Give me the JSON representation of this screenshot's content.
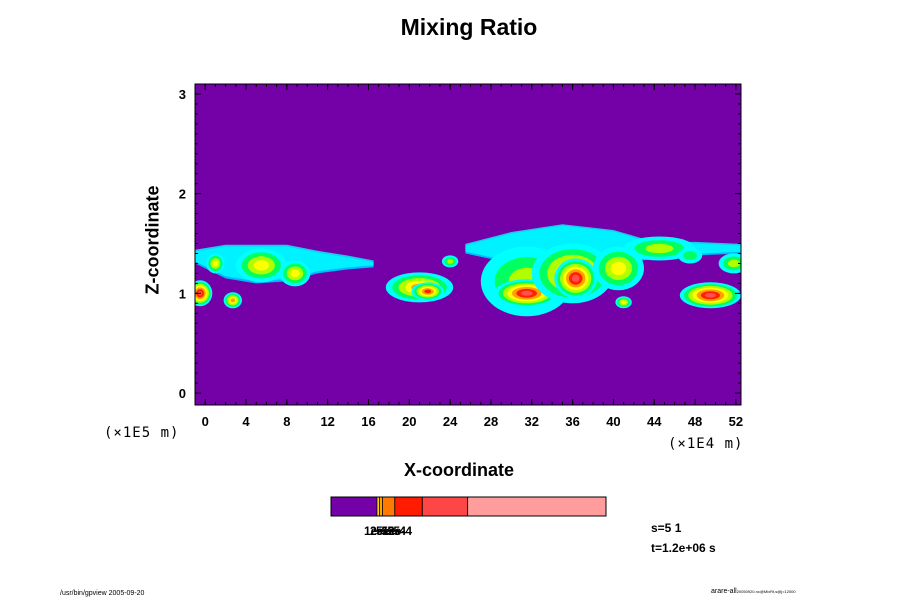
{
  "chart_data": {
    "type": "heatmap",
    "title": "Mixing Ratio",
    "xlabel": "X-coordinate",
    "ylabel": "Z-coordinate",
    "x_scale_note": "(×1E4 m)",
    "y_scale_note": "(×1E5 m)",
    "x_ticks": [
      "0",
      "4",
      "8",
      "12",
      "16",
      "20",
      "24",
      "28",
      "32",
      "36",
      "40",
      "44",
      "48",
      "52"
    ],
    "y_ticks": [
      "0",
      "1",
      "2",
      "3"
    ],
    "xlim": [
      -1,
      52.5
    ],
    "ylim": [
      -0.12,
      3.1
    ],
    "background_color": "#7400a8",
    "cloud_bands": [
      {
        "x": [
          -1,
          2,
          5,
          8,
          11,
          14,
          16.5
        ],
        "top": [
          1.42,
          1.47,
          1.47,
          1.47,
          1.41,
          1.36,
          1.31
        ],
        "bottom": [
          1.3,
          1.15,
          1.1,
          1.12,
          1.2,
          1.24,
          1.26
        ],
        "level": 1
      },
      {
        "x": [
          25.5,
          30,
          35,
          40,
          44,
          48,
          52.5
        ],
        "top": [
          1.48,
          1.6,
          1.68,
          1.62,
          1.5,
          1.5,
          1.48
        ],
        "bottom": [
          1.4,
          1.3,
          1.22,
          1.28,
          1.35,
          1.38,
          1.4
        ],
        "level": 1
      }
    ],
    "cells": [
      {
        "x": -0.5,
        "z": 1.0,
        "rx": 1.2,
        "rz": 0.13,
        "peak": 6
      },
      {
        "x": 1.0,
        "z": 1.3,
        "rx": 0.9,
        "rz": 0.1,
        "peak": 3
      },
      {
        "x": 5.5,
        "z": 1.28,
        "rx": 2.5,
        "rz": 0.17,
        "peak": 3
      },
      {
        "x": 8.8,
        "z": 1.2,
        "rx": 1.5,
        "rz": 0.13,
        "peak": 3
      },
      {
        "x": 2.7,
        "z": 0.93,
        "rx": 0.9,
        "rz": 0.08,
        "peak": 4
      },
      {
        "x": 24.0,
        "z": 1.32,
        "rx": 0.8,
        "rz": 0.06,
        "peak": 2
      },
      {
        "x": 21.0,
        "z": 1.06,
        "rx": 3.3,
        "rz": 0.15,
        "peak": 4
      },
      {
        "x": 21.8,
        "z": 1.02,
        "rx": 1.6,
        "rz": 0.09,
        "peak": 5
      },
      {
        "x": 31.5,
        "z": 1.12,
        "rx": 4.5,
        "rz": 0.35,
        "peak": 2
      },
      {
        "x": 31.5,
        "z": 1.0,
        "rx": 3.2,
        "rz": 0.14,
        "peak": 6
      },
      {
        "x": 36.0,
        "z": 1.2,
        "rx": 4.0,
        "rz": 0.3,
        "peak": 4
      },
      {
        "x": 36.3,
        "z": 1.15,
        "rx": 2.1,
        "rz": 0.2,
        "peak": 6
      },
      {
        "x": 40.5,
        "z": 1.25,
        "rx": 2.5,
        "rz": 0.22,
        "peak": 3
      },
      {
        "x": 44.5,
        "z": 1.45,
        "rx": 3.5,
        "rz": 0.12,
        "peak": 2
      },
      {
        "x": 41.0,
        "z": 0.91,
        "rx": 0.8,
        "rz": 0.06,
        "peak": 3
      },
      {
        "x": 49.5,
        "z": 0.98,
        "rx": 3.0,
        "rz": 0.13,
        "peak": 6
      },
      {
        "x": 51.8,
        "z": 1.3,
        "rx": 1.5,
        "rz": 0.1,
        "peak": 2
      },
      {
        "x": 47.5,
        "z": 1.38,
        "rx": 1.2,
        "rz": 0.08,
        "peak": 1
      }
    ],
    "contour_colors": [
      "#00b8ff",
      "#00ffff",
      "#00ff60",
      "#b0ff00",
      "#ffff00",
      "#ffa000",
      "#ff2000",
      "#ff5050",
      "#ffa0a0",
      "#ffffff"
    ],
    "colorbar": {
      "colors": [
        "#7400a8",
        "#ffd000",
        "#ff9f00",
        "#ff7a00",
        "#ff1c00",
        "#ff4646",
        "#ff9c9c"
      ],
      "fractions": [
        0,
        0.167,
        0.176,
        0.187,
        0.232,
        0.332,
        0.497,
        1.0
      ],
      "labels_overlapping": [
        "1e-5",
        "2e-5",
        "5e-5",
        "1e-4",
        "2e-4"
      ]
    }
  },
  "info": {
    "slice": "s=5 1",
    "time": "t=1.2e+06 s",
    "footer_left": "/usr/bin/gpview 2005-09-20",
    "footer_right_main": "arare-all",
    "footer_right_sub": "20050920.nc@MixRt,s@j=12000"
  }
}
